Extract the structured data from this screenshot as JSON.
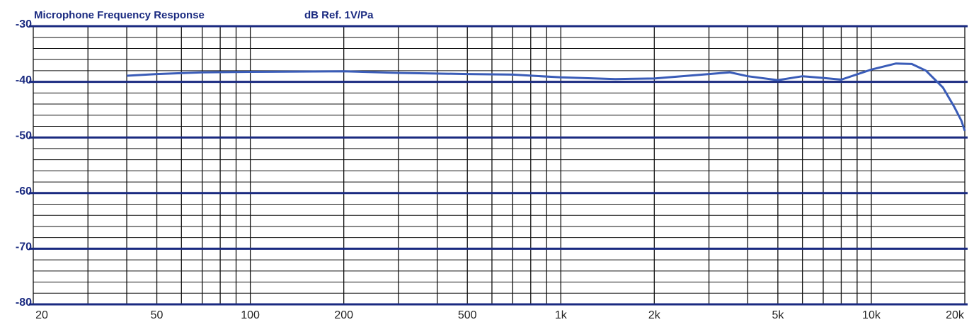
{
  "chart_data": {
    "type": "line",
    "title": "Microphone Frequency Response",
    "subtitle": "dB Ref. 1V/Pa",
    "xscale": "log",
    "xlim": [
      20,
      20000
    ],
    "ylim": [
      -80,
      -30
    ],
    "yticks": [
      -30,
      -40,
      -50,
      -60,
      -70,
      -80
    ],
    "yminorticks": [
      -32,
      -34,
      -36,
      -38,
      -42,
      -44,
      -46,
      -48,
      -52,
      -54,
      -56,
      -58,
      -62,
      -64,
      -66,
      -68,
      -72,
      -74,
      -76,
      -78
    ],
    "xticks": [
      20,
      50,
      100,
      200,
      500,
      {
        "value": 1000,
        "label": "1k"
      },
      {
        "value": 2000,
        "label": "2k"
      },
      {
        "value": 5000,
        "label": "5k"
      },
      {
        "value": 10000,
        "label": "10k"
      },
      {
        "value": 20000,
        "label": "20k"
      }
    ],
    "xminorticks": [
      30,
      40,
      60,
      70,
      80,
      90,
      300,
      400,
      600,
      700,
      800,
      900,
      3000,
      4000,
      6000,
      7000,
      8000,
      9000
    ],
    "grid": true,
    "series": [
      {
        "color": "#3a5cb8",
        "x": [
          40,
          50,
          70,
          100,
          200,
          300,
          500,
          700,
          1000,
          1500,
          2000,
          3000,
          3500,
          4000,
          5000,
          6000,
          7000,
          8000,
          10000,
          12000,
          13500,
          15000,
          17000,
          18500,
          19500,
          20000
        ],
        "values": [
          -38.9,
          -38.6,
          -38.3,
          -38.2,
          -38.1,
          -38.4,
          -38.6,
          -38.7,
          -39.2,
          -39.5,
          -39.4,
          -38.6,
          -38.3,
          -39.0,
          -39.7,
          -39.0,
          -39.3,
          -39.6,
          -37.8,
          -36.7,
          -36.8,
          -38.0,
          -41.0,
          -44.5,
          -47.0,
          -48.8
        ]
      }
    ]
  }
}
